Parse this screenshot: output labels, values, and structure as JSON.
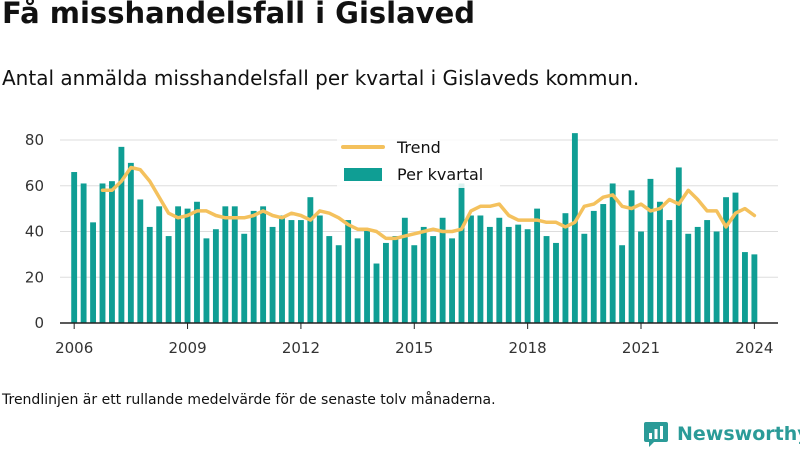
{
  "header": {
    "title": "Få misshandelsfall i Gislaved",
    "subtitle": "Antal anmälda misshandelsfall per kvartal i Gislaveds kommun."
  },
  "footer": {
    "note": "Trendlinjen är ett rullande medelvärde för de senaste tolv månaderna.",
    "brand_name": "Newsworthy"
  },
  "colors": {
    "bar": "#0f9e94",
    "trend": "#f4c15d",
    "grid": "#dddddd",
    "axis": "#222222",
    "brand": "#2b9b98"
  },
  "icons": {
    "brand_logo": "newsworthy-chart-logo-icon"
  },
  "chart_data": {
    "type": "bar",
    "title": "",
    "xlabel": "",
    "ylabel": "",
    "x_range": [
      2005.625,
      2024.625
    ],
    "ylim": [
      0,
      80
    ],
    "y_ticks": [
      0,
      20,
      40,
      60,
      80
    ],
    "x_ticks": [
      2006,
      2009,
      2012,
      2015,
      2018,
      2021,
      2024
    ],
    "grid": true,
    "legend_position": "top-center",
    "series": [
      {
        "name": "Per kvartal",
        "type": "bar",
        "x": [
          2006.0,
          2006.25,
          2006.5,
          2006.75,
          2007.0,
          2007.25,
          2007.5,
          2007.75,
          2008.0,
          2008.25,
          2008.5,
          2008.75,
          2009.0,
          2009.25,
          2009.5,
          2009.75,
          2010.0,
          2010.25,
          2010.5,
          2010.75,
          2011.0,
          2011.25,
          2011.5,
          2011.75,
          2012.0,
          2012.25,
          2012.5,
          2012.75,
          2013.0,
          2013.25,
          2013.5,
          2013.75,
          2014.0,
          2014.25,
          2014.5,
          2014.75,
          2015.0,
          2015.25,
          2015.5,
          2015.75,
          2016.0,
          2016.25,
          2016.5,
          2016.75,
          2017.0,
          2017.25,
          2017.5,
          2017.75,
          2018.0,
          2018.25,
          2018.5,
          2018.75,
          2019.0,
          2019.25,
          2019.5,
          2019.75,
          2020.0,
          2020.25,
          2020.5,
          2020.75,
          2021.0,
          2021.25,
          2021.5,
          2021.75,
          2022.0,
          2022.25,
          2022.5,
          2022.75,
          2023.0,
          2023.25,
          2023.5,
          2023.75,
          2024.0
        ],
        "values": [
          66,
          61,
          44,
          61,
          62,
          77,
          70,
          54,
          42,
          51,
          38,
          51,
          50,
          53,
          37,
          41,
          51,
          51,
          39,
          49,
          51,
          42,
          47,
          45,
          45,
          55,
          47,
          38,
          34,
          45,
          37,
          41,
          26,
          35,
          38,
          46,
          34,
          42,
          38,
          46,
          37,
          61,
          47,
          47,
          42,
          46,
          42,
          43,
          41,
          50,
          38,
          35,
          48,
          83,
          39,
          49,
          52,
          61,
          34,
          58,
          40,
          63,
          53,
          45,
          68,
          39,
          42,
          45,
          40,
          55,
          57,
          31,
          30
        ]
      },
      {
        "name": "Trend",
        "type": "line",
        "x": [
          2006.75,
          2007.0,
          2007.25,
          2007.5,
          2007.75,
          2008.0,
          2008.25,
          2008.5,
          2008.75,
          2009.0,
          2009.25,
          2009.5,
          2009.75,
          2010.0,
          2010.25,
          2010.5,
          2010.75,
          2011.0,
          2011.25,
          2011.5,
          2011.75,
          2012.0,
          2012.25,
          2012.5,
          2012.75,
          2013.0,
          2013.25,
          2013.5,
          2013.75,
          2014.0,
          2014.25,
          2014.5,
          2014.75,
          2015.0,
          2015.25,
          2015.5,
          2015.75,
          2016.0,
          2016.25,
          2016.5,
          2016.75,
          2017.0,
          2017.25,
          2017.5,
          2017.75,
          2018.0,
          2018.25,
          2018.5,
          2018.75,
          2019.0,
          2019.25,
          2019.5,
          2019.75,
          2020.0,
          2020.25,
          2020.5,
          2020.75,
          2021.0,
          2021.25,
          2021.5,
          2021.75,
          2022.0,
          2022.25,
          2022.5,
          2022.75,
          2023.0,
          2023.25,
          2023.5,
          2023.75,
          2024.0
        ],
        "values": [
          58,
          58,
          62,
          68,
          67,
          62,
          55,
          48,
          46,
          47,
          49,
          49,
          47,
          46,
          46,
          46,
          47,
          49,
          47,
          46,
          48,
          47,
          45,
          49,
          48,
          46,
          43,
          41,
          41,
          40,
          37,
          37,
          38,
          39,
          40,
          41,
          40,
          40,
          41,
          49,
          51,
          51,
          52,
          47,
          45,
          45,
          45,
          44,
          44,
          42,
          44,
          51,
          52,
          55,
          56,
          51,
          50,
          52,
          49,
          50,
          54,
          52,
          58,
          54,
          49,
          49,
          42,
          48,
          50,
          47
        ]
      }
    ]
  }
}
